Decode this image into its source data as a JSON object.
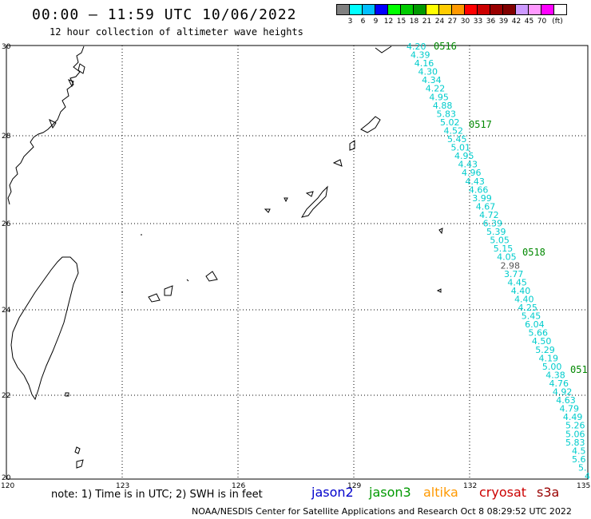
{
  "header": {
    "title": "00:00 – 11:59 UTC 10/06/2022",
    "subtitle": "12 hour collection of altimeter wave heights"
  },
  "colorbar": {
    "colors": [
      "#808080",
      "#00ffff",
      "#00bfff",
      "#0000ff",
      "#00ff00",
      "#00cc00",
      "#009900",
      "#ffff00",
      "#ffcc00",
      "#ff9900",
      "#ff0000",
      "#cc0000",
      "#990000",
      "#800000",
      "#cc99ff",
      "#ff99ff",
      "#ff00ff",
      "#ffffff"
    ],
    "labels": [
      "3",
      "6",
      "9",
      "12",
      "15",
      "18",
      "21",
      "24",
      "27",
      "30",
      "33",
      "36",
      "39",
      "42",
      "45",
      "70",
      "(ft)"
    ]
  },
  "axes": {
    "lat_labels": [
      "30",
      "28",
      "26",
      "24",
      "22",
      "20"
    ],
    "lon_labels": [
      "120",
      "123",
      "126",
      "129",
      "132",
      "135"
    ]
  },
  "passes": [
    "0516",
    "0517",
    "0518",
    "051"
  ],
  "wave_heights": [
    "4.20",
    "4.39",
    "4.16",
    "4.30",
    "4.34",
    "4.22",
    "4.95",
    "4.88",
    "5.83",
    "5.02",
    "4.52",
    "5.45",
    "5.01",
    "4.95",
    "4.43",
    "4.96",
    "4.43",
    "4.66",
    "3.99",
    "4.67",
    "4.72",
    "6.39",
    "5.39",
    "5.05",
    "5.15",
    "4.05",
    "2.98",
    "3.77",
    "4.45",
    "4.40",
    "4.40",
    "4.25",
    "5.45",
    "6.04",
    "5.66",
    "4.50",
    "5.29",
    "4.19",
    "5.00",
    "4.38",
    "4.76",
    "4.92",
    "4.63",
    "4.79",
    "4.49",
    "5.26",
    "5.06",
    "5.83",
    "4.5",
    "5.6",
    "5.",
    "4"
  ],
  "wave_colors": {
    "cyan": "#00cccc",
    "gray": "#555555"
  },
  "note": "note: 1) Time is in UTC; 2) SWH is in feet",
  "satellites": [
    {
      "name": "jason2",
      "color": "#0000cc"
    },
    {
      "name": "jason3",
      "color": "#009900"
    },
    {
      "name": "altika",
      "color": "#ff9900"
    },
    {
      "name": "cryosat",
      "color": "#cc0000"
    },
    {
      "name": "s3a",
      "color": "#990000"
    }
  ],
  "footer": "NOAA/NESDIS Center for Satellite Applications and Research   Oct  8 08:29:52 UTC 2022"
}
